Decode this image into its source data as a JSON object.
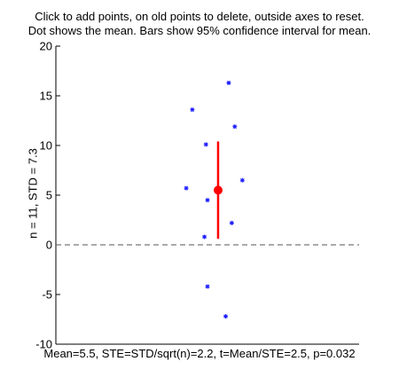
{
  "instructions": {
    "line1": "Click to add points, on old points to delete, outside axes to reset.",
    "line2": "Dot shows the mean. Bars show 95% confidence interval for mean."
  },
  "ylabel": "n = 11,  STD = 7.3",
  "stats_text": "Mean=5.5, STE=STD/sqrt(n)=2.2, t=Mean/STE=2.5, p=0.032",
  "chart_data": {
    "type": "scatter",
    "title": "",
    "xlabel": "",
    "ylabel": "n = 11,  STD = 7.3",
    "ylim": [
      -10,
      20
    ],
    "yticks": [
      -10,
      -5,
      0,
      5,
      10,
      15,
      20
    ],
    "xlim": [
      0,
      1
    ],
    "grid": false,
    "points": [
      {
        "x": 0.43,
        "y": 5.7
      },
      {
        "x": 0.45,
        "y": 13.6
      },
      {
        "x": 0.49,
        "y": 0.8
      },
      {
        "x": 0.495,
        "y": 10.1
      },
      {
        "x": 0.5,
        "y": 4.5
      },
      {
        "x": 0.5,
        "y": -4.2
      },
      {
        "x": 0.56,
        "y": -7.2
      },
      {
        "x": 0.57,
        "y": 16.3
      },
      {
        "x": 0.58,
        "y": 2.2
      },
      {
        "x": 0.59,
        "y": 11.9
      },
      {
        "x": 0.615,
        "y": 6.5
      }
    ],
    "mean": 5.5,
    "ci95": [
      0.6,
      10.4
    ],
    "zero_line": 0,
    "colors": {
      "points": "#1a1aff",
      "mean": "#ff0000",
      "ci": "#ff0000",
      "axes": "#000000",
      "zero_line": "#555555"
    }
  }
}
